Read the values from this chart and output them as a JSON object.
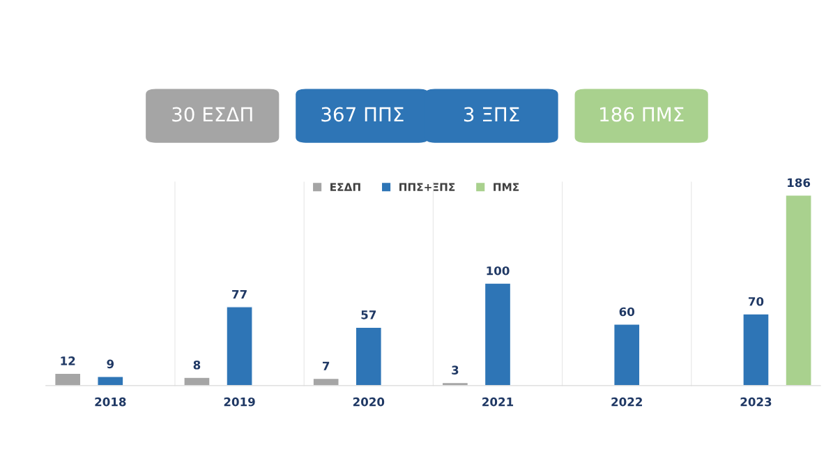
{
  "chart_data": {
    "type": "bar",
    "annotations": [
      "30 ΕΣΔΠ",
      "367 ΠΠΣ",
      "3 ΞΠΣ",
      "186 ΠΜΣ"
    ],
    "categories": [
      "2018",
      "2019",
      "2020",
      "2021",
      "2022",
      "2023"
    ],
    "series": [
      {
        "name": "ΕΣΔΠ",
        "color": "#a5a5a5",
        "values": [
          12,
          8,
          7,
          3,
          null,
          null
        ]
      },
      {
        "name": "ΠΠΣ+ΞΠΣ",
        "color": "#2e75b6",
        "values": [
          9,
          77,
          57,
          100,
          60,
          70
        ]
      },
      {
        "name": "ΠΜΣ",
        "color": "#a9d18e",
        "values": [
          null,
          null,
          null,
          null,
          null,
          186
        ]
      }
    ],
    "data_labels": true,
    "legend": "top",
    "grid": false
  }
}
